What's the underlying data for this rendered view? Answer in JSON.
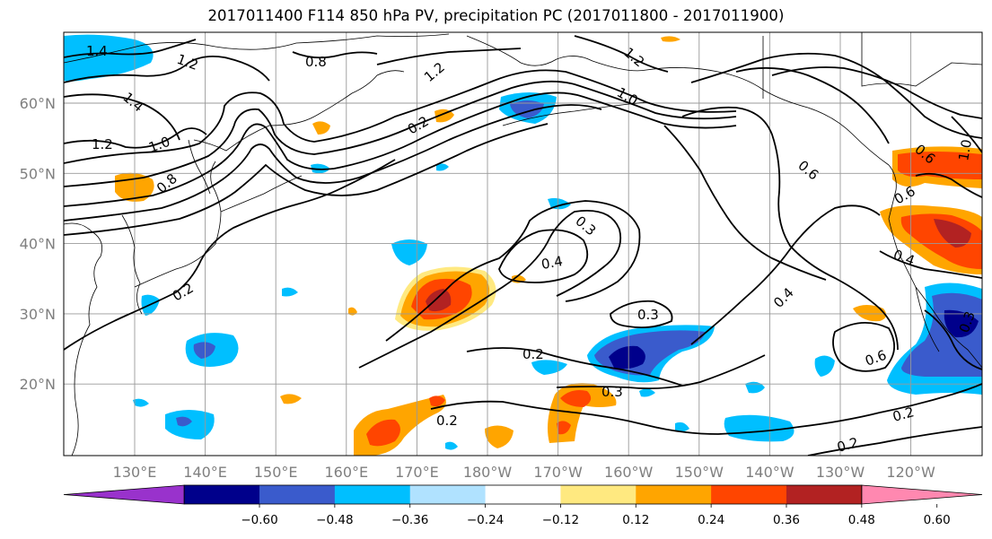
{
  "title": "2017011400 F114 850 hPa PV, precipitation PC (2017011800 - 2017011900)",
  "colors": {
    "pv_contour": "#000000",
    "gridline": "#999999",
    "coast": "#000000",
    "tick_label": "#7f7f7f"
  },
  "map": {
    "lat_labels": [
      "60°N",
      "50°N",
      "40°N",
      "30°N",
      "20°N"
    ],
    "lat_values": [
      60,
      50,
      40,
      30,
      20
    ],
    "lon_labels": [
      "130°E",
      "140°E",
      "150°E",
      "160°E",
      "170°E",
      "180°W",
      "170°W",
      "160°W",
      "150°W",
      "140°W",
      "130°W",
      "120°W"
    ],
    "lon_values": [
      130,
      140,
      150,
      160,
      170,
      180,
      190,
      200,
      210,
      220,
      230,
      240
    ]
  },
  "pv_contour_labels": [
    "1.4",
    "1.2",
    "0.8",
    "1.2",
    "1.0",
    "1.2",
    "1.4",
    "1.2",
    "1.0",
    "0.8",
    "0.2",
    "0.2",
    "0.3",
    "0.4",
    "0.3",
    "0.2",
    "0.3",
    "0.2",
    "0.4",
    "0.6",
    "0.6",
    "0.4",
    "0.6",
    "0.2",
    "0.2",
    "0.6",
    "1.0",
    "0.3"
  ],
  "colorbar": {
    "ticks": [
      "−0.60",
      "−0.48",
      "−0.36",
      "−0.24",
      "−0.12",
      "0.12",
      "0.24",
      "0.36",
      "0.48",
      "0.60"
    ],
    "colors": [
      "#9932cc",
      "#00008b",
      "#3a5bcc",
      "#00bfff",
      "#b0e2ff",
      "#ffffff",
      "#ffe980",
      "#ffa500",
      "#ff4500",
      "#b22222",
      "#ff88b0"
    ]
  }
}
